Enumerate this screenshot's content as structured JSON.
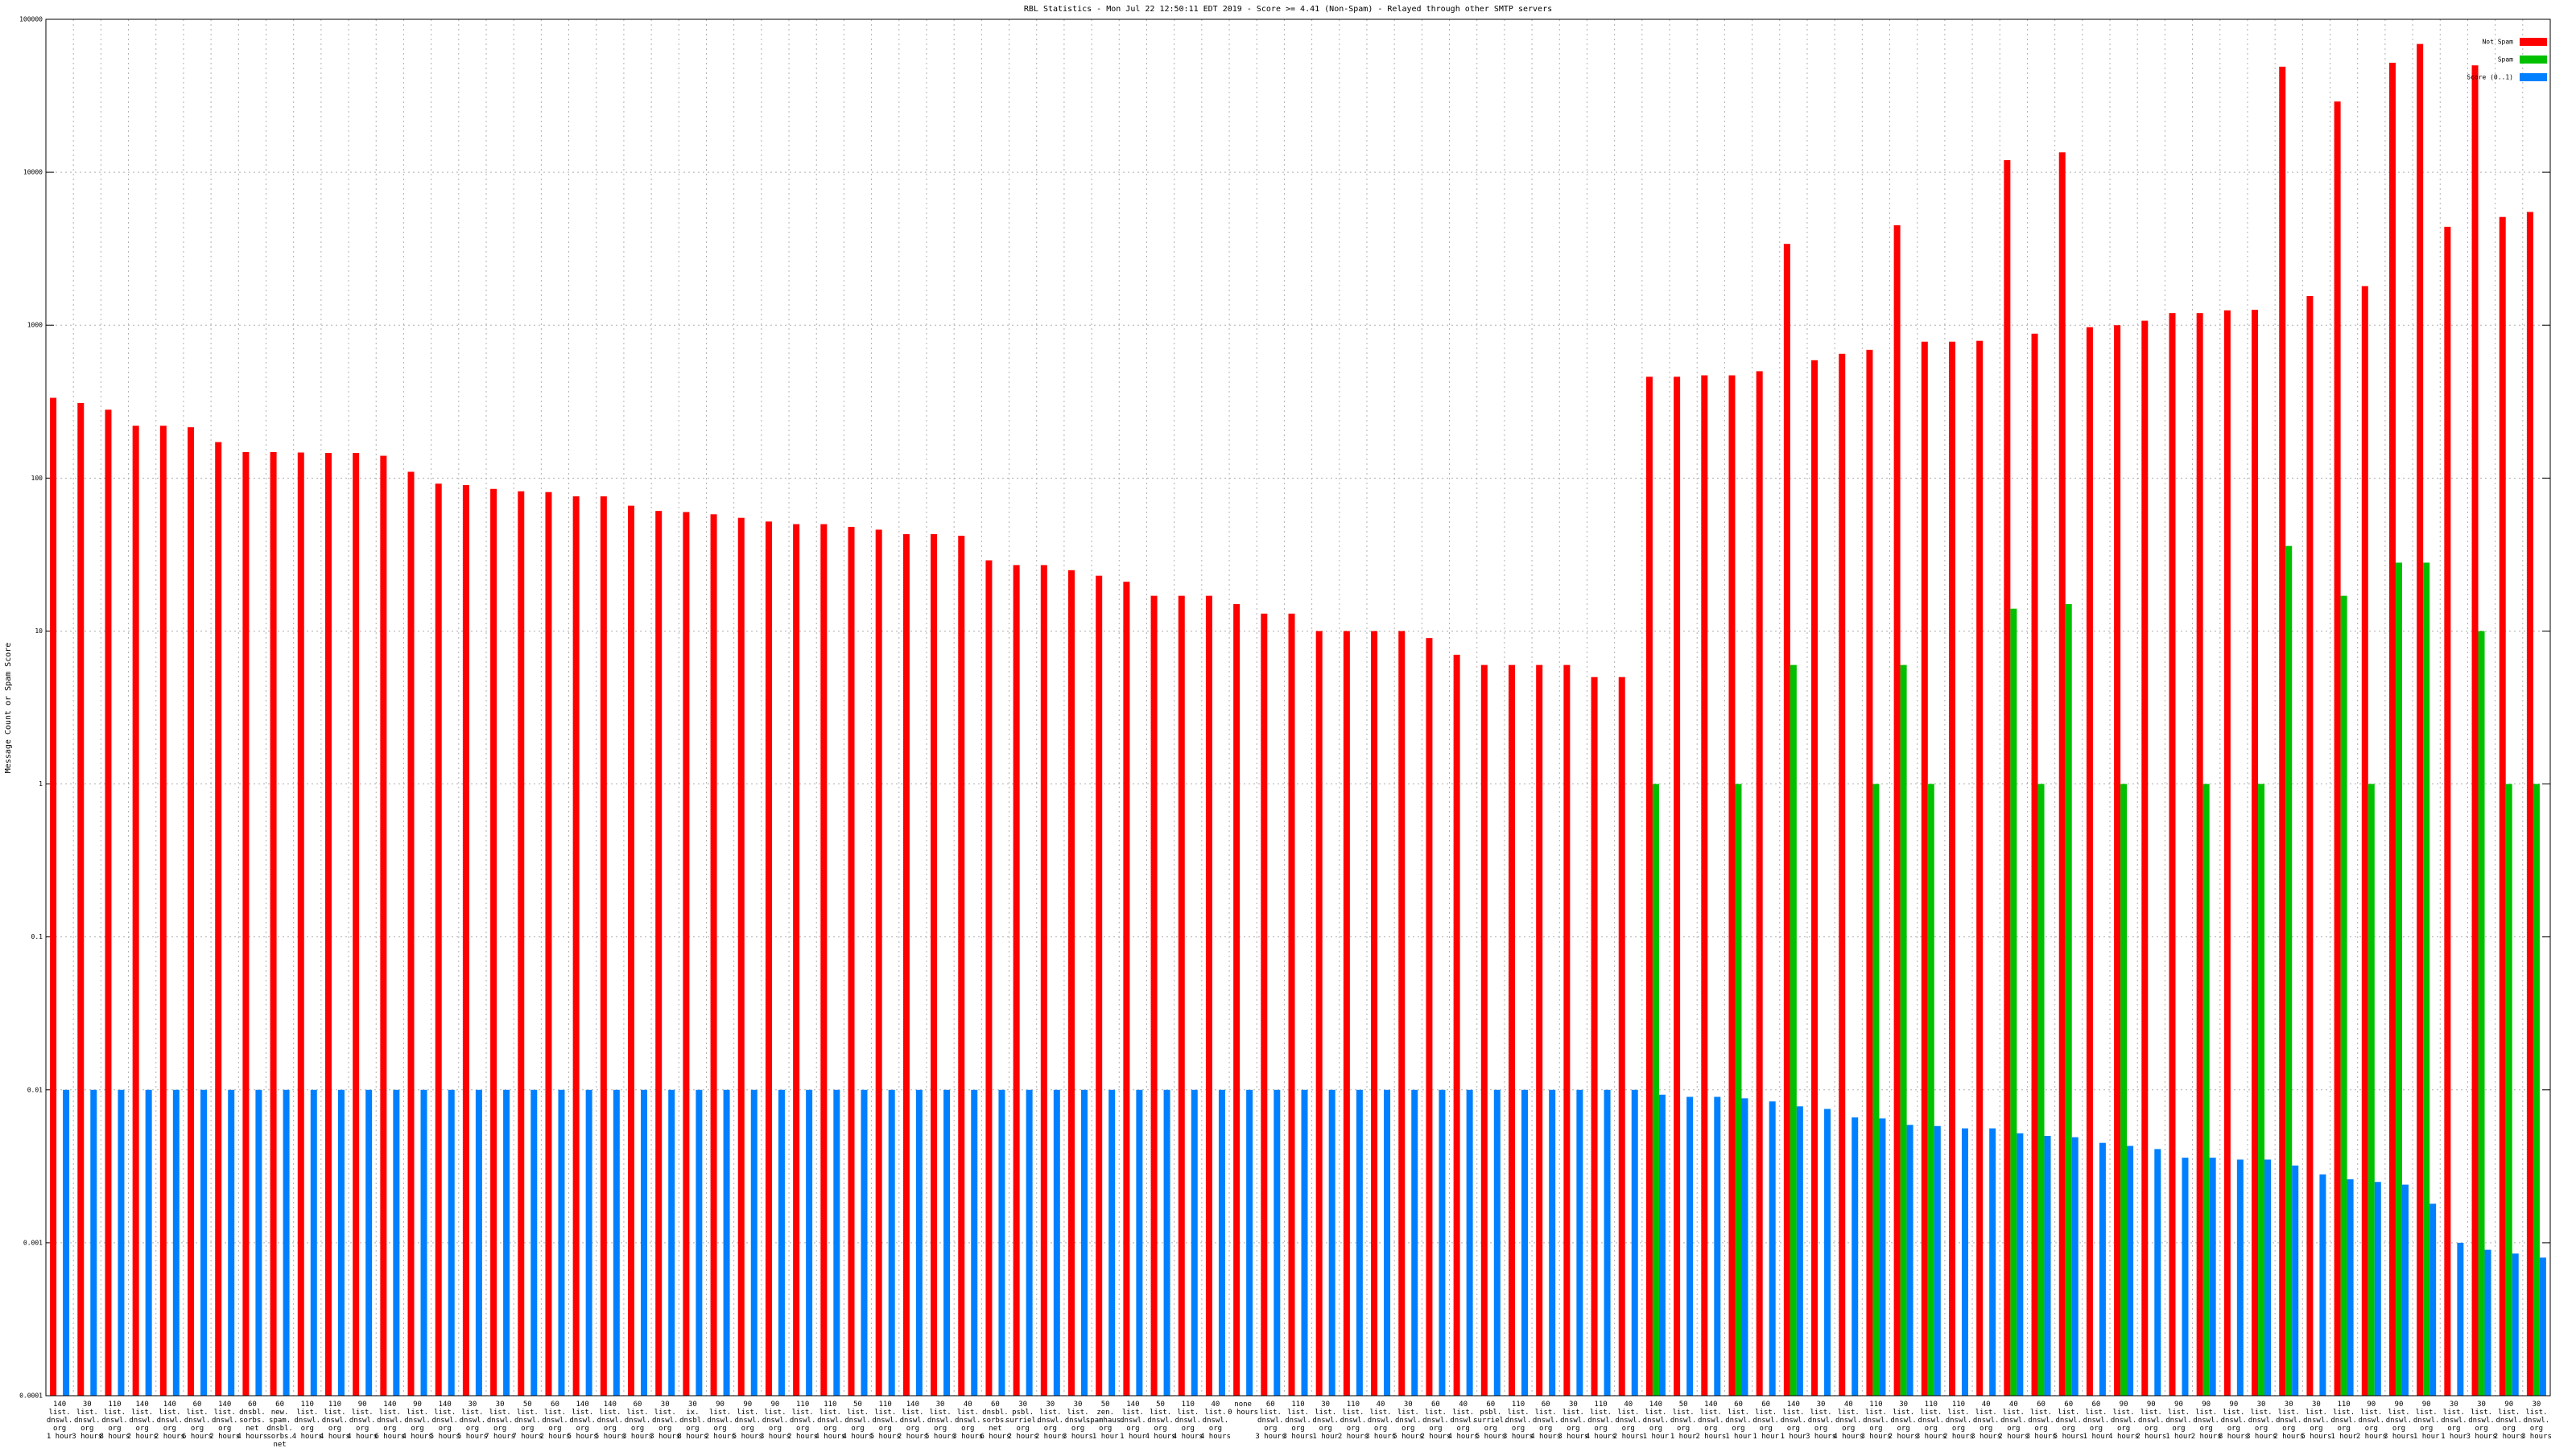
{
  "chart_data": {
    "type": "bar",
    "title": "RBL Statistics - Mon Jul 22 12:50:11 EDT 2019 - Score >= 4.41 (Non-Spam) - Relayed through other SMTP servers",
    "y_label": "Message Count or Spam Score",
    "log_scale": true,
    "grid": true,
    "legend": "top-right",
    "ylim": [
      0.0001,
      100000
    ],
    "yticks": [
      0.0001,
      0.001,
      0.01,
      0.1,
      1,
      10,
      100,
      1000,
      10000,
      100000
    ],
    "categories": [
      "140\nlist.\ndnswl.\norg\n1 hour",
      "30\nlist.\ndnswl.\norg\n3 hours",
      "110\nlist.\ndnswl.\norg\n8 hours",
      "140\nlist.\ndnswl.\norg\n2 hours",
      "140\nlist.\ndnswl.\norg\n2 hours",
      "60\nlist.\ndnswl.\norg\n6 hours",
      "140\nlist.\ndnswl.\norg\n2 hours",
      "60\ndnsbl.\nsorbs.\nnet\n4 hours",
      "60\nnew.\nspam.\ndnsbl.\nsorbs.\nnet\n4 hours",
      "110\nlist.\ndnswl.\norg\n4 hours",
      "110\nlist.\ndnswl.\norg\n4 hours",
      "90\nlist.\ndnswl.\norg\n4 hours",
      "140\nlist.\ndnswl.\norg\n6 hours",
      "90\nlist.\ndnswl.\norg\n4 hours",
      "140\nlist.\ndnswl.\norg\n5 hours",
      "30\nlist.\ndnswl.\norg\n5 hours",
      "30\nlist.\ndnswl.\norg\n7 hours",
      "50\nlist.\ndnswl.\norg\n7 hours",
      "60\nlist.\ndnswl.\norg\n2 hours",
      "140\nlist.\ndnswl.\norg\n5 hours",
      "140\nlist.\ndnswl.\norg\n5 hours",
      "60\nlist.\ndnswl.\norg\n3 hours",
      "30\nlist.\ndnswl.\norg\n3 hours",
      "30\nix.\ndnsbl.\norg\n8 hours",
      "90\nlist.\ndnswl.\norg\n2 hours",
      "90\nlist.\ndnswl.\norg\n5 hours",
      "90\nlist.\ndnswl.\norg\n3 hours",
      "110\nlist.\ndnswl.\norg\n2 hours",
      "110\nlist.\ndnswl.\norg\n4 hours",
      "50\nlist.\ndnswl.\norg\n4 hours",
      "110\nlist.\ndnswl.\norg\n5 hours",
      "140\nlist.\ndnswl.\norg\n2 hours",
      "30\nlist.\ndnswl.\norg\n5 hours",
      "40\nlist.\ndnswl.\norg\n3 hours",
      "60\ndnsbl.\nsorbs.\nnet\n6 hours",
      "30\npsbl.\nsurriel.\norg\n2 hours",
      "30\nlist.\ndnswl.\norg\n2 hours",
      "30\nlist.\ndnswl.\norg\n3 hours",
      "50\nzen.\nspamhaus.\norg\n1 hour",
      "140\nlist.\ndnswl.\norg\n1 hour",
      "50\nlist.\ndnswl.\norg\n4 hours",
      "110\nlist.\ndnswl.\norg\n4 hours",
      "40\nlist.\ndnswl.\norg\n4 hours",
      "none\n0 hours",
      "60\nlist.\ndnswl.\norg\n3 hours",
      "110\nlist.\ndnswl.\norg\n3 hours",
      "30\nlist.\ndnswl.\norg\n1 hour",
      "110\nlist.\ndnswl.\norg\n2 hours",
      "40\nlist.\ndnswl.\norg\n3 hours",
      "30\nlist.\ndnswl.\norg\n5 hours",
      "60\nlist.\ndnswl.\norg\n2 hours",
      "40\nlist.\ndnswl.\norg\n4 hours",
      "60\npsbl.\nsurriel.\norg\n5 hours",
      "110\nlist.\ndnswl.\norg\n3 hours",
      "60\nlist.\ndnswl.\norg\n4 hours",
      "30\nlist.\ndnswl.\norg\n3 hours",
      "110\nlist.\ndnswl.\norg\n4 hours",
      "40\nlist.\ndnswl.\norg\n2 hours",
      "140\nlist.\ndnswl.\norg\n1 hour",
      "50\nlist.\ndnswl.\norg\n1 hour",
      "140\nlist.\ndnswl.\norg\n2 hours",
      "60\nlist.\ndnswl.\norg\n1 hour",
      "60\nlist.\ndnswl.\norg\n1 hour",
      "140\nlist.\ndnswl.\norg\n1 hour",
      "30\nlist.\ndnswl.\norg\n3 hours",
      "40\nlist.\ndnswl.\norg\n4 hours",
      "110\nlist.\ndnswl.\norg\n3 hours",
      "30\nlist.\ndnswl.\norg\n2 hours",
      "110\nlist.\ndnswl.\norg\n3 hours",
      "110\nlist.\ndnswl.\norg\n2 hours",
      "40\nlist.\ndnswl.\norg\n3 hours",
      "40\nlist.\ndnswl.\norg\n2 hours",
      "60\nlist.\ndnswl.\norg\n3 hours",
      "60\nlist.\ndnswl.\norg\n5 hours",
      "60\nlist.\ndnswl.\norg\n1 hour",
      "90\nlist.\ndnswl.\norg\n4 hours",
      "90\nlist.\ndnswl.\norg\n2 hours",
      "90\nlist.\ndnswl.\norg\n1 hour",
      "90\nlist.\ndnswl.\norg\n2 hours",
      "90\nlist.\ndnswl.\norg\n8 hours",
      "30\nlist.\ndnswl.\norg\n3 hours",
      "30\nlist.\ndnswl.\norg\n2 hours",
      "30\nlist.\ndnswl.\norg\n5 hours",
      "110\nlist.\ndnswl.\norg\n1 hour",
      "90\nlist.\ndnswl.\norg\n2 hours",
      "90\nlist.\ndnswl.\norg\n3 hours",
      "90\nlist.\ndnswl.\norg\n1 hour",
      "30\nlist.\ndnswl.\norg\n1 hour",
      "30\nlist.\ndnswl.\norg\n3 hours",
      "90\nlist.\ndnswl.\norg\n2 hours",
      "30\nlist.\ndnswl.\norg\n3 hours"
    ],
    "series": [
      {
        "name": "Not Spam",
        "color": "#ff0000",
        "values": [
          335,
          310,
          280,
          220,
          220,
          215,
          172,
          148,
          148,
          147,
          146,
          146,
          140,
          110,
          92,
          90,
          85,
          82,
          81,
          76,
          76,
          66,
          61,
          60,
          58,
          55,
          52,
          50,
          50,
          48,
          46,
          43,
          43,
          42,
          29,
          27,
          27,
          25,
          23,
          21,
          17,
          17,
          17,
          15,
          13,
          13,
          10,
          10,
          10,
          10,
          9,
          7,
          6,
          6,
          6,
          6,
          5,
          5,
          460,
          460,
          470,
          470,
          500,
          3400,
          590,
          650,
          690,
          4500,
          780,
          780,
          790,
          12000,
          880,
          13500,
          970,
          1000,
          1070,
          1200,
          1200,
          1250,
          1260,
          49000,
          1550,
          29000,
          1800,
          52000,
          69000,
          4400,
          50000,
          5100,
          5500
        ]
      },
      {
        "name": "Spam",
        "color": "#00c000",
        "values": [
          null,
          null,
          null,
          null,
          null,
          null,
          null,
          null,
          null,
          null,
          null,
          null,
          null,
          null,
          null,
          null,
          null,
          null,
          null,
          null,
          null,
          null,
          null,
          null,
          null,
          null,
          null,
          null,
          null,
          null,
          null,
          null,
          null,
          null,
          null,
          null,
          null,
          null,
          null,
          null,
          null,
          null,
          null,
          null,
          null,
          null,
          null,
          null,
          null,
          null,
          null,
          null,
          null,
          null,
          null,
          null,
          null,
          null,
          1,
          null,
          null,
          1,
          null,
          6,
          null,
          null,
          1,
          6,
          1,
          null,
          null,
          14,
          1,
          15,
          null,
          1,
          null,
          null,
          1,
          null,
          1,
          36,
          null,
          17,
          1,
          28,
          28,
          null,
          10,
          1,
          1
        ]
      },
      {
        "name": "Score (0..1)",
        "color": "#0080ff",
        "values": [
          0.01,
          0.01,
          0.01,
          0.01,
          0.01,
          0.01,
          0.01,
          0.01,
          0.01,
          0.01,
          0.01,
          0.01,
          0.01,
          0.01,
          0.01,
          0.01,
          0.01,
          0.01,
          0.01,
          0.01,
          0.01,
          0.01,
          0.01,
          0.01,
          0.01,
          0.01,
          0.01,
          0.01,
          0.01,
          0.01,
          0.01,
          0.01,
          0.01,
          0.01,
          0.01,
          0.01,
          0.01,
          0.01,
          0.01,
          0.01,
          0.01,
          0.01,
          0.01,
          0.01,
          0.01,
          0.01,
          0.01,
          0.01,
          0.01,
          0.01,
          0.01,
          0.01,
          0.01,
          0.01,
          0.01,
          0.01,
          0.01,
          0.01,
          0.0093,
          0.009,
          0.009,
          0.0088,
          0.0084,
          0.0078,
          0.0075,
          0.0066,
          0.0065,
          0.0059,
          0.0058,
          0.0056,
          0.0056,
          0.0052,
          0.005,
          0.0049,
          0.0045,
          0.0043,
          0.0041,
          0.0036,
          0.0036,
          0.0035,
          0.0035,
          0.0032,
          0.0028,
          0.0026,
          0.0025,
          0.0024,
          0.0018,
          0.001,
          0.0009,
          0.00085,
          0.0008
        ]
      }
    ]
  }
}
